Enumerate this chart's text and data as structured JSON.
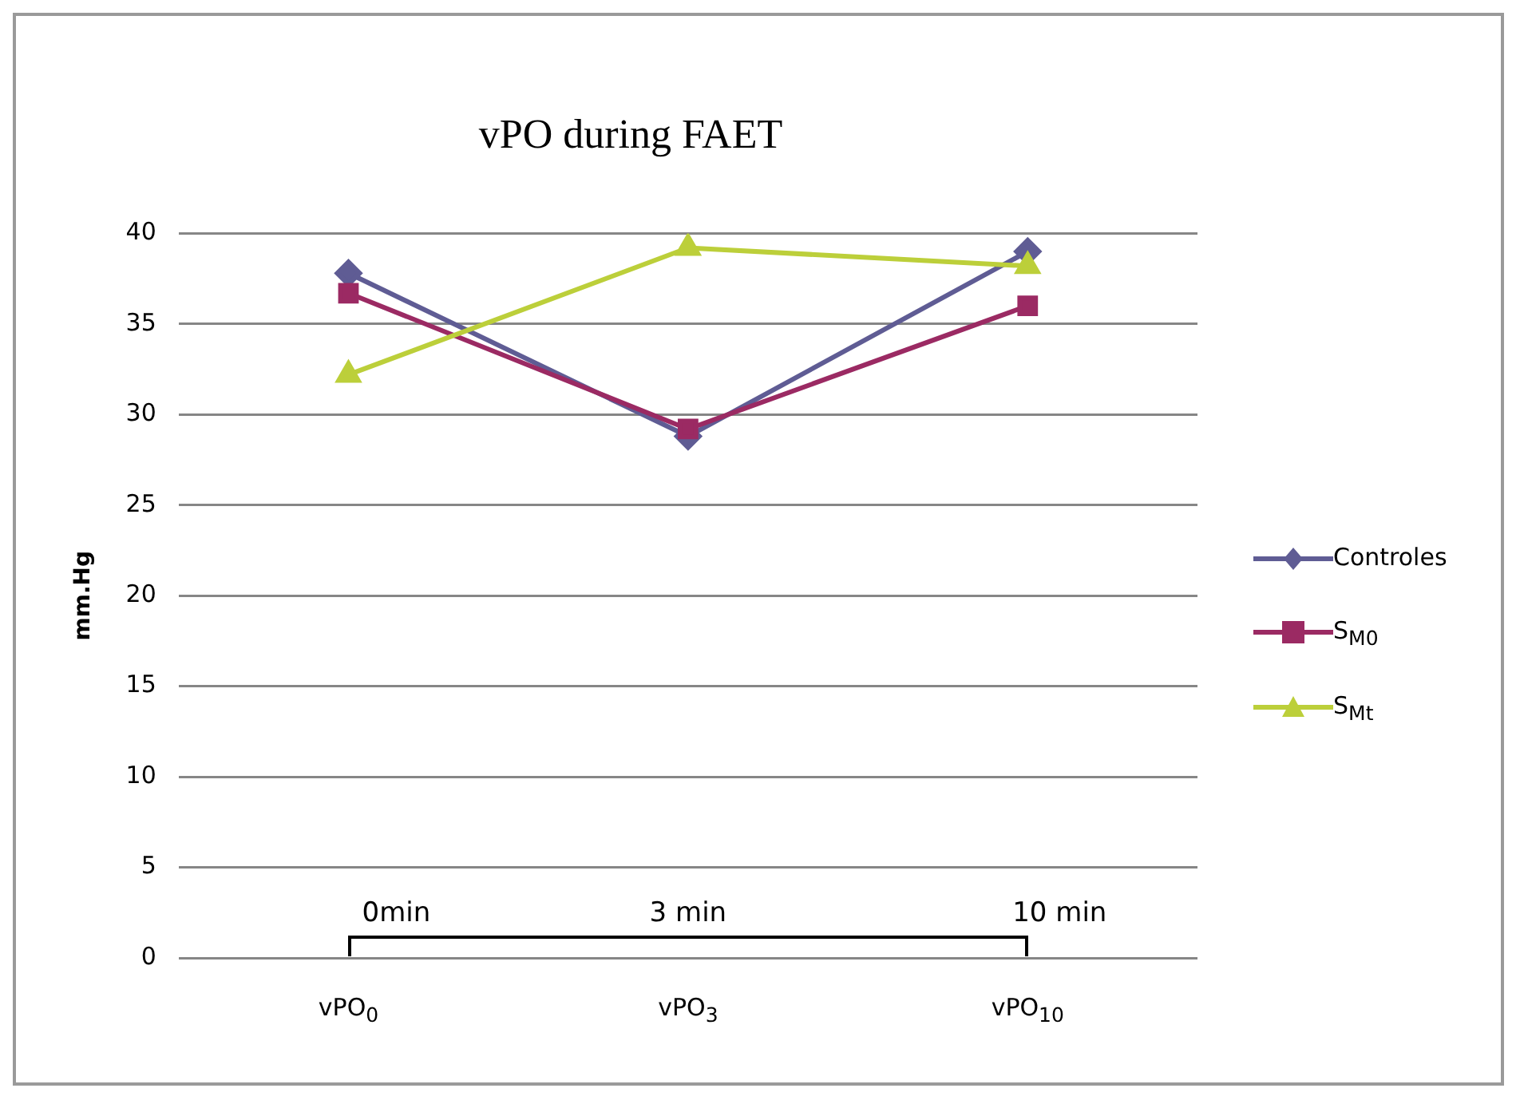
{
  "chart_data": {
    "type": "line",
    "title": "vPO during FAET",
    "ylabel": "mm.Hg",
    "categories": [
      "vPO$_{0}$",
      "vPO$_{3}$",
      "vPO$_{10}$"
    ],
    "series": [
      {
        "name": "Controles",
        "color": "#5f5c94",
        "marker": "diamond",
        "values": [
          37.8,
          28.8,
          39.0
        ]
      },
      {
        "name": "S$_{M0}$",
        "color": "#9b2a63",
        "marker": "square",
        "values": [
          36.7,
          29.2,
          36.0
        ]
      },
      {
        "name": "S$_{Mt}$",
        "color": "#bccf3a",
        "marker": "triangle",
        "values": [
          32.2,
          39.2,
          38.2
        ]
      }
    ],
    "annotations": [
      "0min",
      "3 min",
      "10 min"
    ],
    "ylim": [
      0,
      40
    ],
    "yticks": [
      0,
      5,
      10,
      15,
      20,
      25,
      30,
      35,
      40
    ],
    "grid": "y",
    "legend": "right"
  }
}
